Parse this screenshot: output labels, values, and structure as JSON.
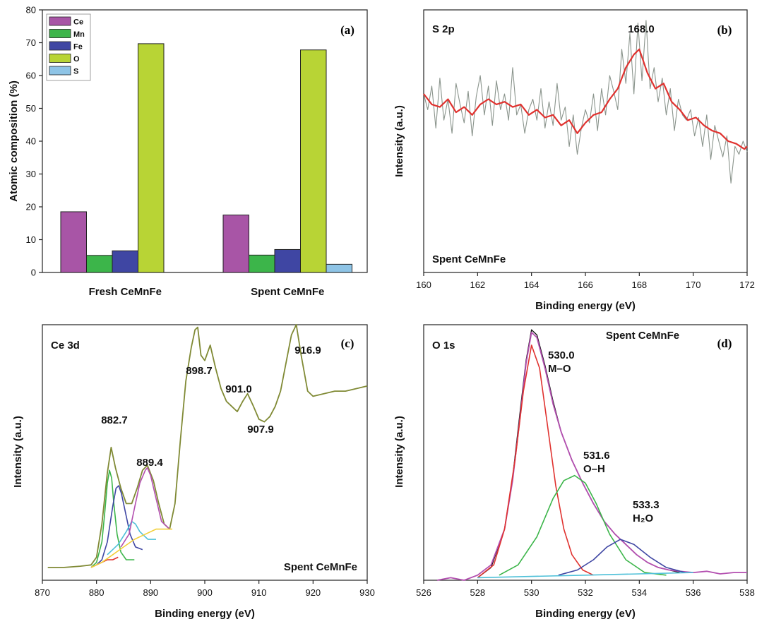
{
  "chart_data": [
    {
      "panel_label": "(a)",
      "type": "bar",
      "ylabel": "Atomic composition (%)",
      "xlabel": "",
      "ylim": [
        0,
        80
      ],
      "yticks": [
        "0",
        "10",
        "20",
        "30",
        "40",
        "50",
        "60",
        "70",
        "80"
      ],
      "categories": [
        "Fresh CeMnFe",
        "Spent CeMnFe"
      ],
      "legend_position": "top-left",
      "series": [
        {
          "name": "Ce",
          "color": "#a855a6",
          "values": [
            18.5,
            17.5
          ]
        },
        {
          "name": "Mn",
          "color": "#3cb54a",
          "values": [
            5.2,
            5.3
          ]
        },
        {
          "name": "Fe",
          "color": "#3f46a3",
          "values": [
            6.6,
            7.0
          ]
        },
        {
          "name": "O",
          "color": "#b8d435",
          "values": [
            69.7,
            67.8
          ]
        },
        {
          "name": "S",
          "color": "#8ec4e6",
          "values": [
            0,
            2.5
          ]
        }
      ]
    },
    {
      "panel_label": "(b)",
      "type": "line",
      "title": "S 2p",
      "sample_label": "Spent CeMnFe",
      "xlabel": "Binding energy (eV)",
      "ylabel": "Intensity (a.u.)",
      "xlim": [
        160,
        172
      ],
      "ylim": [
        0,
        1
      ],
      "xticks": [
        "160",
        "162",
        "164",
        "166",
        "168",
        "170",
        "172"
      ],
      "peak_labels": [
        {
          "text": "168.0",
          "x": 168.0
        }
      ],
      "series": [
        {
          "name": "raw",
          "color": "#8a948c",
          "x": [
            160.0,
            160.15,
            160.3,
            160.45,
            160.6,
            160.75,
            160.9,
            161.05,
            161.2,
            161.35,
            161.5,
            161.65,
            161.8,
            161.95,
            162.1,
            162.25,
            162.4,
            162.55,
            162.7,
            162.85,
            163.0,
            163.15,
            163.3,
            163.45,
            163.6,
            163.75,
            163.9,
            164.05,
            164.2,
            164.35,
            164.5,
            164.65,
            164.8,
            164.95,
            165.1,
            165.25,
            165.4,
            165.55,
            165.7,
            165.85,
            166.0,
            166.15,
            166.3,
            166.45,
            166.6,
            166.75,
            166.9,
            167.05,
            167.2,
            167.35,
            167.5,
            167.65,
            167.8,
            167.95,
            168.1,
            168.25,
            168.4,
            168.55,
            168.7,
            168.85,
            169.0,
            169.15,
            169.3,
            169.45,
            169.6,
            169.75,
            169.9,
            170.05,
            170.2,
            170.35,
            170.5,
            170.65,
            170.8,
            170.95,
            171.1,
            171.25,
            171.4,
            171.55,
            171.7,
            171.85,
            172.0
          ],
          "y": [
            0.68,
            0.62,
            0.71,
            0.55,
            0.74,
            0.58,
            0.66,
            0.53,
            0.72,
            0.64,
            0.57,
            0.69,
            0.52,
            0.67,
            0.75,
            0.6,
            0.71,
            0.56,
            0.73,
            0.62,
            0.68,
            0.58,
            0.78,
            0.6,
            0.64,
            0.53,
            0.62,
            0.66,
            0.58,
            0.7,
            0.55,
            0.65,
            0.56,
            0.72,
            0.58,
            0.63,
            0.48,
            0.6,
            0.45,
            0.55,
            0.62,
            0.57,
            0.68,
            0.54,
            0.7,
            0.6,
            0.75,
            0.69,
            0.62,
            0.85,
            0.72,
            0.91,
            0.68,
            0.95,
            0.73,
            0.96,
            0.7,
            0.78,
            0.65,
            0.74,
            0.6,
            0.7,
            0.54,
            0.66,
            0.6,
            0.58,
            0.62,
            0.52,
            0.59,
            0.48,
            0.6,
            0.43,
            0.56,
            0.5,
            0.44,
            0.52,
            0.34,
            0.48,
            0.45,
            0.5,
            0.46
          ]
        },
        {
          "name": "fit",
          "color": "#e0322f",
          "x": [
            160.0,
            160.3,
            160.6,
            160.9,
            161.2,
            161.5,
            161.8,
            162.1,
            162.4,
            162.7,
            163.0,
            163.3,
            163.6,
            163.9,
            164.2,
            164.5,
            164.8,
            165.1,
            165.4,
            165.7,
            166.0,
            166.3,
            166.6,
            166.9,
            167.2,
            167.5,
            167.8,
            168.0,
            168.3,
            168.6,
            168.9,
            169.2,
            169.5,
            169.8,
            170.1,
            170.4,
            170.7,
            171.0,
            171.3,
            171.6,
            171.9,
            172.0
          ],
          "y": [
            0.68,
            0.64,
            0.63,
            0.66,
            0.61,
            0.63,
            0.6,
            0.64,
            0.66,
            0.64,
            0.65,
            0.63,
            0.64,
            0.6,
            0.62,
            0.59,
            0.6,
            0.56,
            0.58,
            0.53,
            0.57,
            0.6,
            0.61,
            0.66,
            0.7,
            0.78,
            0.83,
            0.85,
            0.76,
            0.7,
            0.72,
            0.65,
            0.62,
            0.58,
            0.59,
            0.56,
            0.54,
            0.53,
            0.5,
            0.49,
            0.47,
            0.48
          ]
        }
      ]
    },
    {
      "panel_label": "(c)",
      "type": "line",
      "title": "Ce 3d",
      "sample_label": "Spent CeMnFe",
      "xlabel": "Binding energy (eV)",
      "ylabel": "Intensity (a.u.)",
      "xlim": [
        870,
        930
      ],
      "ylim": [
        0,
        1
      ],
      "xticks": [
        "870",
        "880",
        "890",
        "900",
        "910",
        "920",
        "930"
      ],
      "peak_labels": [
        {
          "text": "882.7",
          "x": 882.7
        },
        {
          "text": "889.4",
          "x": 889.4
        },
        {
          "text": "898.7",
          "x": 898.7
        },
        {
          "text": "901.0",
          "x": 901.0
        },
        {
          "text": "907.9",
          "x": 907.9
        },
        {
          "text": "916.9",
          "x": 916.9
        }
      ],
      "series": [
        {
          "name": "spectrum",
          "color": "#808a35",
          "x": [
            871,
            874,
            877,
            879,
            880,
            881,
            882,
            882.7,
            883.5,
            884.5,
            885.5,
            886.5,
            887.5,
            888.5,
            889.4,
            890.5,
            891.5,
            892.5,
            893.5,
            894.5,
            895.5,
            896.5,
            897.5,
            898.2,
            898.7,
            899.3,
            900,
            901,
            902,
            903,
            904,
            905,
            906,
            907,
            907.9,
            909,
            910,
            911,
            912,
            913,
            914,
            915,
            916,
            916.9,
            917.8,
            919,
            920,
            922,
            924,
            926,
            928,
            930
          ],
          "y": [
            0.05,
            0.05,
            0.055,
            0.06,
            0.09,
            0.22,
            0.42,
            0.52,
            0.44,
            0.36,
            0.3,
            0.3,
            0.36,
            0.43,
            0.45,
            0.39,
            0.3,
            0.22,
            0.2,
            0.3,
            0.55,
            0.78,
            0.91,
            0.98,
            0.99,
            0.88,
            0.86,
            0.92,
            0.83,
            0.75,
            0.7,
            0.68,
            0.66,
            0.7,
            0.73,
            0.68,
            0.63,
            0.62,
            0.64,
            0.68,
            0.74,
            0.85,
            0.96,
            1.0,
            0.88,
            0.74,
            0.72,
            0.73,
            0.74,
            0.74,
            0.75,
            0.76
          ]
        },
        {
          "name": "fit-1",
          "color": "#3cb54a",
          "x": [
            879,
            880,
            881,
            881.5,
            882,
            882.4,
            882.8,
            883.2,
            883.8,
            884.5,
            885.5,
            887
          ],
          "y": [
            0.05,
            0.07,
            0.15,
            0.26,
            0.38,
            0.43,
            0.4,
            0.3,
            0.18,
            0.11,
            0.08,
            0.08
          ]
        },
        {
          "name": "fit-2",
          "color": "#3f46a3",
          "x": [
            880,
            881,
            882,
            883,
            883.6,
            884.1,
            884.6,
            885.3,
            886.2,
            887.2,
            888.5
          ],
          "y": [
            0.06,
            0.08,
            0.15,
            0.29,
            0.36,
            0.37,
            0.34,
            0.27,
            0.18,
            0.13,
            0.12
          ]
        },
        {
          "name": "fit-3",
          "color": "#4ec0d8",
          "x": [
            882,
            884,
            885.5,
            886.5,
            887.2,
            888,
            889.5,
            891
          ],
          "y": [
            0.1,
            0.14,
            0.19,
            0.23,
            0.22,
            0.19,
            0.16,
            0.16
          ]
        },
        {
          "name": "fit-4",
          "color": "#b34fb0",
          "x": [
            884.5,
            886,
            887,
            888,
            889,
            889.4,
            890,
            891,
            892,
            893.5
          ],
          "y": [
            0.13,
            0.18,
            0.28,
            0.38,
            0.43,
            0.44,
            0.41,
            0.32,
            0.23,
            0.2
          ]
        },
        {
          "name": "fit-5",
          "color": "#e0322f",
          "x": [
            879,
            880,
            881,
            882,
            883,
            884
          ],
          "y": [
            0.05,
            0.06,
            0.07,
            0.08,
            0.08,
            0.09
          ]
        },
        {
          "name": "baseline",
          "color": "#f2d03b",
          "x": [
            879,
            881,
            883,
            885,
            887,
            889,
            891,
            893,
            894
          ],
          "y": [
            0.05,
            0.07,
            0.1,
            0.13,
            0.16,
            0.18,
            0.2,
            0.2,
            0.2
          ]
        }
      ]
    },
    {
      "panel_label": "(d)",
      "type": "line",
      "title": "O 1s",
      "sample_label": "Spent CeMnFe",
      "xlabel": "Binding energy (eV)",
      "ylabel": "Intensity (a.u.)",
      "xlim": [
        526,
        538
      ],
      "ylim": [
        0,
        1
      ],
      "xticks": [
        "526",
        "528",
        "530",
        "532",
        "534",
        "536",
        "538"
      ],
      "peak_labels": [
        {
          "text": "530.0",
          "sub": "M–O",
          "x": 530.0
        },
        {
          "text": "531.6",
          "sub": "O–H",
          "x": 531.6
        },
        {
          "text": "533.3",
          "sub": "H₂O",
          "x": 533.3
        }
      ],
      "series": [
        {
          "name": "spectrum",
          "color": "#111111",
          "x": [
            528,
            528.5,
            529,
            529.3,
            529.6,
            529.8,
            530.0,
            530.2,
            530.5,
            530.8,
            531.1,
            531.5,
            531.9,
            532.3,
            532.7,
            533.1,
            533.5,
            533.9,
            534.3,
            534.7,
            535.1,
            535.5
          ],
          "y": [
            0.01,
            0.05,
            0.2,
            0.4,
            0.68,
            0.86,
            0.98,
            0.96,
            0.84,
            0.7,
            0.58,
            0.47,
            0.38,
            0.3,
            0.23,
            0.18,
            0.14,
            0.1,
            0.07,
            0.05,
            0.04,
            0.03
          ]
        },
        {
          "name": "envelope",
          "color": "#b34fb0",
          "x": [
            526.5,
            527,
            527.5,
            528,
            528.5,
            529,
            529.3,
            529.6,
            529.8,
            530.0,
            530.2,
            530.5,
            530.8,
            531.1,
            531.5,
            531.9,
            532.3,
            532.7,
            533.1,
            533.5,
            533.9,
            534.3,
            534.7,
            535.1,
            535.5,
            536,
            536.5,
            537,
            537.5,
            538
          ],
          "y": [
            0.0,
            0.01,
            0.0,
            0.02,
            0.06,
            0.2,
            0.39,
            0.66,
            0.85,
            0.97,
            0.95,
            0.83,
            0.69,
            0.58,
            0.47,
            0.38,
            0.3,
            0.23,
            0.18,
            0.14,
            0.1,
            0.07,
            0.05,
            0.04,
            0.035,
            0.03,
            0.035,
            0.025,
            0.03,
            0.03
          ]
        },
        {
          "name": "M–O",
          "color": "#e0322f",
          "x": [
            528,
            528.6,
            529,
            529.4,
            529.7,
            530.0,
            530.3,
            530.6,
            530.9,
            531.2,
            531.5,
            531.9,
            532.3
          ],
          "y": [
            0.01,
            0.06,
            0.2,
            0.48,
            0.74,
            0.92,
            0.83,
            0.6,
            0.37,
            0.2,
            0.1,
            0.04,
            0.02
          ]
        },
        {
          "name": "O–H",
          "color": "#3cb54a",
          "x": [
            528.8,
            529.5,
            530.2,
            530.8,
            531.2,
            531.6,
            532.0,
            532.4,
            532.9,
            533.5,
            534.2,
            535
          ],
          "y": [
            0.02,
            0.06,
            0.17,
            0.32,
            0.39,
            0.41,
            0.38,
            0.3,
            0.18,
            0.08,
            0.03,
            0.02
          ]
        },
        {
          "name": "H₂O",
          "color": "#3f46a3",
          "x": [
            531,
            531.7,
            532.3,
            532.8,
            533.3,
            533.8,
            534.4,
            535,
            535.7
          ],
          "y": [
            0.02,
            0.04,
            0.08,
            0.13,
            0.16,
            0.14,
            0.09,
            0.05,
            0.03
          ]
        },
        {
          "name": "baseline",
          "color": "#4ec0d8",
          "x": [
            528,
            530,
            532,
            534,
            536
          ],
          "y": [
            0.01,
            0.015,
            0.02,
            0.025,
            0.03
          ]
        }
      ]
    }
  ]
}
